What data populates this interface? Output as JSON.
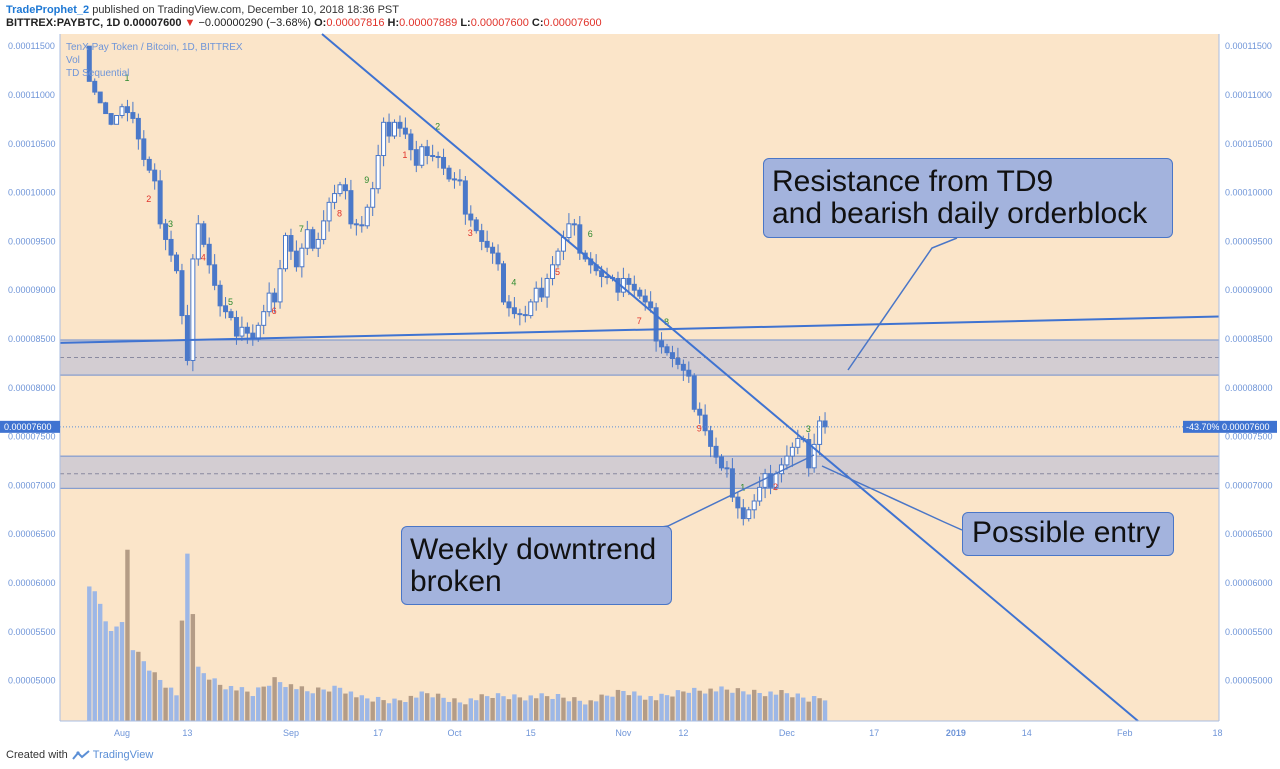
{
  "header": {
    "author": "TradeProphet_2",
    "published_text": " published on TradingView.com, December 10, 2018 18:36 PST",
    "symbol": "BITTREX:PAYBTC, 1D",
    "last_price": "0.00007600",
    "change_arrow": "▼",
    "change": "−0.00000290 (−3.68%)",
    "o_label": "O:",
    "o": "0.00007816",
    "h_label": "H:",
    "h": "0.00007889",
    "l_label": "L:",
    "l": "0.00007600",
    "c_label": "C:",
    "c": "0.00007600"
  },
  "legend": {
    "title": "TenX Pay Token / Bitcoin, 1D, BITTREX",
    "line2": "Vol",
    "line3": "TD Sequential"
  },
  "price_badge_left": "0.00007600",
  "price_badge_right_pct": "-43.70%",
  "price_badge_right": "0.00007600",
  "callouts": {
    "resistance": "Resistance from TD9\nand bearish daily orderblock",
    "weekly": "Weekly downtrend\nbroken",
    "entry": "Possible entry"
  },
  "footer": {
    "created_with": "Created with",
    "brand": "TradingView"
  },
  "colors": {
    "background": "#fbe5c9",
    "candle_body": "#4a78c9",
    "volume_up": "#9db7e6",
    "volume_down": "#b49c86",
    "zone_fill": "#c6c4d4",
    "callout_fill": "#a3b3dd",
    "callout_border": "#4a76c7",
    "td_green": "#2e8a2e",
    "td_red": "#e0332b"
  },
  "chart_data": {
    "type": "candlestick",
    "yaxis_ticks": [
      "0.00011500",
      "0.00011000",
      "0.00010500",
      "0.00010000",
      "0.00009500",
      "0.00009000",
      "0.00008500",
      "0.00008000",
      "0.00007500",
      "0.00007000",
      "0.00006500",
      "0.00006000",
      "0.00005500",
      "0.00005000"
    ],
    "ylim": [
      4.65e-05,
      0.0001165
    ],
    "xaxis_ticks": [
      {
        "label": "Aug",
        "day": 0
      },
      {
        "label": "13",
        "day": 12
      },
      {
        "label": "Sep",
        "day": 31
      },
      {
        "label": "17",
        "day": 47
      },
      {
        "label": "Oct",
        "day": 61
      },
      {
        "label": "15",
        "day": 75
      },
      {
        "label": "Nov",
        "day": 92
      },
      {
        "label": "12",
        "day": 103
      },
      {
        "label": "Dec",
        "day": 122
      },
      {
        "label": "17",
        "day": 138
      },
      {
        "label": "2019",
        "day": 153
      },
      {
        "label": "14",
        "day": 166
      },
      {
        "label": "Feb",
        "day": 184
      },
      {
        "label": "18",
        "day": 201
      }
    ],
    "price_path": [
      [
        -6,
        0.000115
      ],
      [
        -4,
        0.000112
      ],
      [
        -2,
        0.000109
      ],
      [
        0,
        0.00011
      ],
      [
        2,
        0.000108
      ],
      [
        4,
        0.000103
      ],
      [
        6,
        0.0001
      ],
      [
        8,
        9.6e-05
      ],
      [
        10,
        9.2e-05
      ],
      [
        11,
        8.7e-05
      ],
      [
        12,
        8.2e-05
      ],
      [
        13,
        9.2e-05
      ],
      [
        14,
        9.8e-05
      ],
      [
        16,
        9.3e-05
      ],
      [
        18,
        8.8e-05
      ],
      [
        20,
        8.6e-05
      ],
      [
        22,
        8.7e-05
      ],
      [
        24,
        8.5e-05
      ],
      [
        26,
        8.7e-05
      ],
      [
        28,
        9e-05
      ],
      [
        30,
        9.6e-05
      ],
      [
        32,
        9.2e-05
      ],
      [
        34,
        9.5e-05
      ],
      [
        36,
        9.6e-05
      ],
      [
        38,
        9.9e-05
      ],
      [
        40,
        0.0001
      ],
      [
        42,
        9.8e-05
      ],
      [
        44,
        9.7e-05
      ],
      [
        46,
        0.0001
      ],
      [
        48,
        0.000106
      ],
      [
        50,
        0.000108
      ],
      [
        52,
        0.000106
      ],
      [
        54,
        0.000102
      ],
      [
        56,
        0.000105
      ],
      [
        58,
        0.000104
      ],
      [
        60,
        0.000101
      ],
      [
        62,
        0.0001
      ],
      [
        64,
        9.8e-05
      ],
      [
        66,
        9.5e-05
      ],
      [
        68,
        9.3e-05
      ],
      [
        70,
        9e-05
      ],
      [
        72,
        8.8e-05
      ],
      [
        74,
        8.7e-05
      ],
      [
        76,
        8.9e-05
      ],
      [
        78,
        9.2e-05
      ],
      [
        80,
        9.4e-05
      ],
      [
        82,
        9.6e-05
      ],
      [
        84,
        9.5e-05
      ],
      [
        86,
        9.3e-05
      ],
      [
        88,
        9.1e-05
      ],
      [
        90,
        9e-05
      ],
      [
        92,
        9.2e-05
      ],
      [
        94,
        9e-05
      ],
      [
        96,
        8.8e-05
      ],
      [
        98,
        8.6e-05
      ],
      [
        100,
        8.4e-05
      ],
      [
        102,
        8.2e-05
      ],
      [
        104,
        8e-05
      ],
      [
        106,
        7.8e-05
      ],
      [
        108,
        7.4e-05
      ],
      [
        110,
        7.1e-05
      ],
      [
        112,
        7e-05
      ],
      [
        114,
        6.7e-05
      ],
      [
        116,
        6.8e-05
      ],
      [
        118,
        7e-05
      ],
      [
        120,
        7.2e-05
      ],
      [
        122,
        7.3e-05
      ],
      [
        124,
        7.4e-05
      ],
      [
        126,
        7.3e-05
      ],
      [
        128,
        7.7e-05
      ],
      [
        129,
        7.6e-05
      ]
    ],
    "volume_path": [
      [
        -6,
        5.95e-05
      ],
      [
        -4,
        5.75e-05
      ],
      [
        -2,
        5.45e-05
      ],
      [
        0,
        5.6e-05
      ],
      [
        1,
        6.37e-05
      ],
      [
        2,
        5.37e-05
      ],
      [
        6,
        5.1e-05
      ],
      [
        10,
        4.9e-05
      ],
      [
        12,
        6.33e-05
      ],
      [
        14,
        5.15e-05
      ],
      [
        18,
        5e-05
      ],
      [
        24,
        4.9e-05
      ],
      [
        28,
        5.05e-05
      ],
      [
        34,
        4.92e-05
      ],
      [
        40,
        4.97e-05
      ],
      [
        44,
        4.85e-05
      ],
      [
        50,
        4.83e-05
      ],
      [
        56,
        4.9e-05
      ],
      [
        62,
        4.82e-05
      ],
      [
        68,
        4.88e-05
      ],
      [
        74,
        4.87e-05
      ],
      [
        80,
        4.87e-05
      ],
      [
        86,
        4.82e-05
      ],
      [
        92,
        4.93e-05
      ],
      [
        98,
        4.85e-05
      ],
      [
        104,
        4.94e-05
      ],
      [
        110,
        4.94e-05
      ],
      [
        116,
        4.92e-05
      ],
      [
        122,
        4.9e-05
      ],
      [
        126,
        4.85e-05
      ],
      [
        129,
        4.87e-05
      ]
    ],
    "zones": [
      {
        "from": 8.13e-05,
        "to": 8.49e-05,
        "mid": 8.31e-05
      },
      {
        "from": 6.97e-05,
        "to": 7.3e-05,
        "mid": 7.12e-05
      }
    ],
    "last_price": 7.6e-05
  }
}
